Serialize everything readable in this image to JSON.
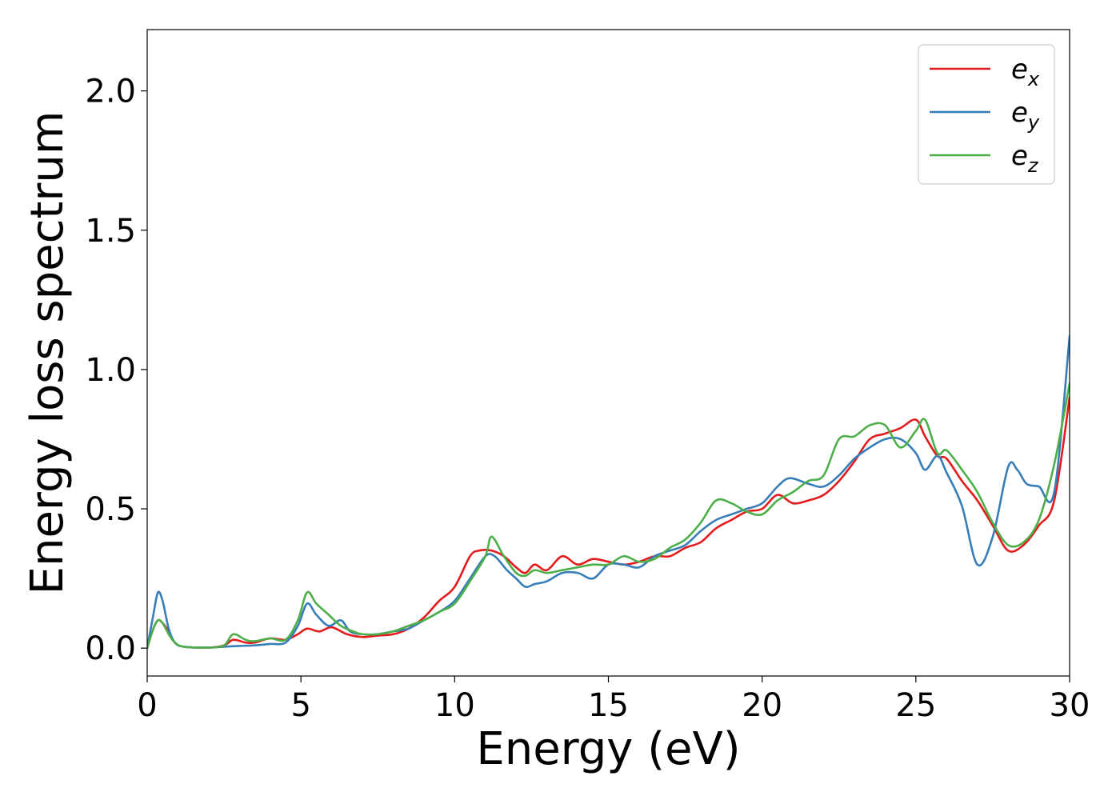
{
  "chart_data": {
    "type": "line",
    "xlabel": "Energy (eV)",
    "ylabel": "Energy loss spectrum",
    "xlim": [
      0,
      30
    ],
    "ylim": [
      -0.1,
      2.22
    ],
    "xticks": [
      0,
      5,
      10,
      15,
      20,
      25,
      30
    ],
    "xtick_labels": [
      "0",
      "5",
      "10",
      "15",
      "20",
      "25",
      "30"
    ],
    "yticks": [
      0.0,
      0.5,
      1.0,
      1.5,
      2.0
    ],
    "ytick_labels": [
      "0.0",
      "0.5",
      "1.0",
      "1.5",
      "2.0"
    ],
    "grid": false,
    "legend_position": "top-right",
    "series": [
      {
        "name": "e",
        "subscript": "x",
        "color": "#e41a1c",
        "points": [
          [
            0,
            0.0
          ],
          [
            0.2,
            0.07
          ],
          [
            0.35,
            0.1
          ],
          [
            0.5,
            0.09
          ],
          [
            0.7,
            0.06
          ],
          [
            0.9,
            0.02
          ],
          [
            1.2,
            0.005
          ],
          [
            2,
            0.002
          ],
          [
            2.5,
            0.01
          ],
          [
            2.8,
            0.03
          ],
          [
            3.2,
            0.02
          ],
          [
            3.5,
            0.02
          ],
          [
            4,
            0.035
          ],
          [
            4.5,
            0.03
          ],
          [
            4.9,
            0.05
          ],
          [
            5.2,
            0.07
          ],
          [
            5.6,
            0.06
          ],
          [
            6,
            0.075
          ],
          [
            6.5,
            0.05
          ],
          [
            7,
            0.04
          ],
          [
            7.5,
            0.045
          ],
          [
            8,
            0.05
          ],
          [
            8.5,
            0.07
          ],
          [
            9,
            0.11
          ],
          [
            9.5,
            0.17
          ],
          [
            10,
            0.22
          ],
          [
            10.5,
            0.33
          ],
          [
            10.8,
            0.35
          ],
          [
            11.2,
            0.35
          ],
          [
            11.6,
            0.33
          ],
          [
            12,
            0.29
          ],
          [
            12.3,
            0.27
          ],
          [
            12.6,
            0.3
          ],
          [
            13,
            0.28
          ],
          [
            13.5,
            0.33
          ],
          [
            14,
            0.3
          ],
          [
            14.5,
            0.32
          ],
          [
            15,
            0.31
          ],
          [
            15.5,
            0.3
          ],
          [
            16,
            0.31
          ],
          [
            16.5,
            0.33
          ],
          [
            17,
            0.33
          ],
          [
            17.5,
            0.36
          ],
          [
            18,
            0.38
          ],
          [
            18.5,
            0.43
          ],
          [
            19,
            0.46
          ],
          [
            19.5,
            0.49
          ],
          [
            20,
            0.5
          ],
          [
            20.5,
            0.55
          ],
          [
            21,
            0.52
          ],
          [
            21.5,
            0.53
          ],
          [
            22,
            0.55
          ],
          [
            22.5,
            0.6
          ],
          [
            23,
            0.67
          ],
          [
            23.5,
            0.75
          ],
          [
            24,
            0.77
          ],
          [
            24.5,
            0.79
          ],
          [
            25,
            0.82
          ],
          [
            25.3,
            0.76
          ],
          [
            25.7,
            0.69
          ],
          [
            26,
            0.68
          ],
          [
            26.5,
            0.6
          ],
          [
            27,
            0.53
          ],
          [
            27.5,
            0.44
          ],
          [
            28,
            0.35
          ],
          [
            28.5,
            0.37
          ],
          [
            29,
            0.44
          ],
          [
            29.5,
            0.53
          ],
          [
            30,
            0.9
          ]
        ]
      },
      {
        "name": "e",
        "subscript": "y",
        "color": "#377eb8",
        "points": [
          [
            0,
            0.0
          ],
          [
            0.2,
            0.12
          ],
          [
            0.35,
            0.2
          ],
          [
            0.5,
            0.17
          ],
          [
            0.7,
            0.07
          ],
          [
            0.9,
            0.02
          ],
          [
            1.2,
            0.005
          ],
          [
            2,
            0.002
          ],
          [
            2.5,
            0.005
          ],
          [
            3,
            0.008
          ],
          [
            3.5,
            0.01
          ],
          [
            4,
            0.015
          ],
          [
            4.5,
            0.02
          ],
          [
            4.9,
            0.08
          ],
          [
            5.2,
            0.16
          ],
          [
            5.5,
            0.12
          ],
          [
            5.9,
            0.08
          ],
          [
            6.3,
            0.1
          ],
          [
            6.6,
            0.06
          ],
          [
            7,
            0.05
          ],
          [
            7.5,
            0.05
          ],
          [
            8,
            0.06
          ],
          [
            8.5,
            0.07
          ],
          [
            9,
            0.1
          ],
          [
            9.5,
            0.13
          ],
          [
            10,
            0.17
          ],
          [
            10.5,
            0.25
          ],
          [
            11,
            0.33
          ],
          [
            11.3,
            0.33
          ],
          [
            11.7,
            0.28
          ],
          [
            12,
            0.25
          ],
          [
            12.3,
            0.22
          ],
          [
            12.6,
            0.23
          ],
          [
            13,
            0.24
          ],
          [
            13.5,
            0.27
          ],
          [
            14,
            0.27
          ],
          [
            14.5,
            0.25
          ],
          [
            15,
            0.3
          ],
          [
            15.5,
            0.3
          ],
          [
            16,
            0.29
          ],
          [
            16.5,
            0.33
          ],
          [
            17,
            0.35
          ],
          [
            17.5,
            0.37
          ],
          [
            18,
            0.42
          ],
          [
            18.5,
            0.46
          ],
          [
            19,
            0.48
          ],
          [
            19.5,
            0.5
          ],
          [
            20,
            0.52
          ],
          [
            20.5,
            0.58
          ],
          [
            20.9,
            0.61
          ],
          [
            21.5,
            0.59
          ],
          [
            22,
            0.58
          ],
          [
            22.5,
            0.62
          ],
          [
            23,
            0.68
          ],
          [
            23.5,
            0.72
          ],
          [
            24,
            0.75
          ],
          [
            24.5,
            0.75
          ],
          [
            25,
            0.7
          ],
          [
            25.3,
            0.64
          ],
          [
            25.7,
            0.69
          ],
          [
            26,
            0.63
          ],
          [
            26.5,
            0.51
          ],
          [
            27,
            0.3
          ],
          [
            27.5,
            0.4
          ],
          [
            28,
            0.65
          ],
          [
            28.3,
            0.64
          ],
          [
            28.6,
            0.59
          ],
          [
            29,
            0.58
          ],
          [
            29.5,
            0.56
          ],
          [
            30,
            1.12
          ]
        ]
      },
      {
        "name": "e",
        "subscript": "z",
        "color": "#4daf4a",
        "points": [
          [
            0,
            0.0
          ],
          [
            0.2,
            0.07
          ],
          [
            0.35,
            0.1
          ],
          [
            0.5,
            0.09
          ],
          [
            0.7,
            0.05
          ],
          [
            0.9,
            0.02
          ],
          [
            1.2,
            0.005
          ],
          [
            2,
            0.002
          ],
          [
            2.5,
            0.01
          ],
          [
            2.8,
            0.05
          ],
          [
            3.2,
            0.03
          ],
          [
            3.5,
            0.025
          ],
          [
            4,
            0.035
          ],
          [
            4.5,
            0.03
          ],
          [
            4.9,
            0.1
          ],
          [
            5.2,
            0.2
          ],
          [
            5.5,
            0.16
          ],
          [
            5.9,
            0.12
          ],
          [
            6.3,
            0.08
          ],
          [
            6.7,
            0.06
          ],
          [
            7,
            0.05
          ],
          [
            7.5,
            0.05
          ],
          [
            8,
            0.06
          ],
          [
            8.5,
            0.08
          ],
          [
            9,
            0.1
          ],
          [
            9.5,
            0.13
          ],
          [
            10,
            0.16
          ],
          [
            10.5,
            0.24
          ],
          [
            11,
            0.33
          ],
          [
            11.2,
            0.4
          ],
          [
            11.6,
            0.33
          ],
          [
            12,
            0.27
          ],
          [
            12.3,
            0.26
          ],
          [
            12.6,
            0.28
          ],
          [
            13,
            0.27
          ],
          [
            13.5,
            0.28
          ],
          [
            14,
            0.29
          ],
          [
            14.5,
            0.3
          ],
          [
            15,
            0.3
          ],
          [
            15.5,
            0.33
          ],
          [
            16,
            0.31
          ],
          [
            16.5,
            0.32
          ],
          [
            17,
            0.36
          ],
          [
            17.5,
            0.39
          ],
          [
            18,
            0.45
          ],
          [
            18.5,
            0.53
          ],
          [
            19,
            0.52
          ],
          [
            19.5,
            0.49
          ],
          [
            20,
            0.48
          ],
          [
            20.5,
            0.53
          ],
          [
            21,
            0.56
          ],
          [
            21.5,
            0.6
          ],
          [
            22,
            0.62
          ],
          [
            22.5,
            0.75
          ],
          [
            23,
            0.76
          ],
          [
            23.5,
            0.8
          ],
          [
            24,
            0.8
          ],
          [
            24.5,
            0.72
          ],
          [
            25,
            0.78
          ],
          [
            25.3,
            0.82
          ],
          [
            25.7,
            0.7
          ],
          [
            26,
            0.71
          ],
          [
            26.5,
            0.64
          ],
          [
            27,
            0.56
          ],
          [
            27.5,
            0.45
          ],
          [
            28,
            0.37
          ],
          [
            28.5,
            0.38
          ],
          [
            29,
            0.46
          ],
          [
            29.5,
            0.66
          ],
          [
            30,
            0.95
          ]
        ]
      }
    ]
  }
}
